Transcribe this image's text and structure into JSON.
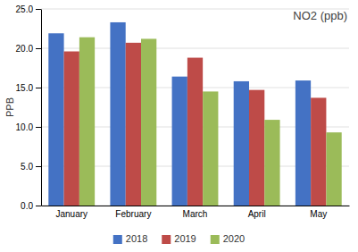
{
  "chart_data": {
    "type": "bar",
    "annotation": "NO2 (ppb)",
    "y_label": "PPB",
    "categories": [
      "January",
      "February",
      "March",
      "April",
      "May"
    ],
    "series": [
      {
        "name": "2018",
        "color": "#4472C4",
        "values": [
          21.9,
          23.3,
          16.4,
          15.8,
          15.9
        ]
      },
      {
        "name": "2019",
        "color": "#BE4B48",
        "values": [
          19.6,
          20.7,
          18.8,
          14.7,
          13.7
        ]
      },
      {
        "name": "2020",
        "color": "#9BBB59",
        "values": [
          21.4,
          21.2,
          14.5,
          10.9,
          9.3
        ]
      }
    ],
    "ylim": [
      0,
      25
    ],
    "yticks": [
      {
        "value": 0,
        "label": "0.0"
      },
      {
        "value": 5,
        "label": "5.0"
      },
      {
        "value": 10,
        "label": "10.0"
      },
      {
        "value": 15,
        "label": "15.0"
      },
      {
        "value": 20,
        "label": "20.0"
      },
      {
        "value": 25,
        "label": "25.0"
      }
    ],
    "grid": true,
    "legend": "bottom"
  }
}
